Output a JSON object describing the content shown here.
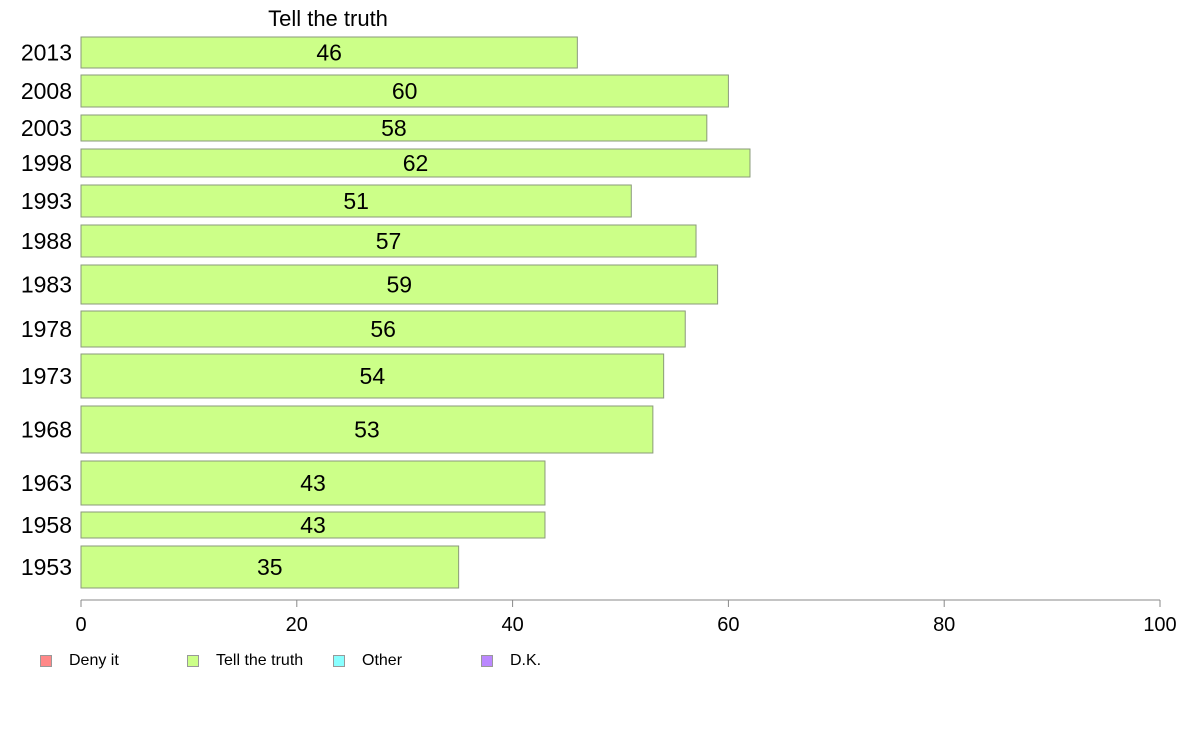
{
  "chart_data": {
    "type": "bar",
    "orientation": "horizontal",
    "title": "Tell the truth",
    "categories": [
      "2013",
      "2008",
      "2003",
      "1998",
      "1993",
      "1988",
      "1983",
      "1978",
      "1973",
      "1968",
      "1963",
      "1958",
      "1953"
    ],
    "series": [
      {
        "name": "Tell the truth",
        "values": [
          46,
          60,
          58,
          62,
          51,
          57,
          59,
          56,
          54,
          53,
          43,
          43,
          35
        ],
        "display_values": [
          46,
          60,
          58,
          62,
          51,
          57,
          59,
          56,
          54,
          53,
          43,
          43,
          35
        ],
        "color": "#ccff88"
      }
    ],
    "xlim": [
      0,
      100
    ],
    "xticks": [
      "0",
      "20",
      "40",
      "60",
      "80",
      "100"
    ],
    "grid": false,
    "legend_position": "bottom",
    "legend": [
      {
        "label": "Deny it",
        "color": "#ff8888"
      },
      {
        "label": "Tell the truth",
        "color": "#ccff88"
      },
      {
        "label": "Other",
        "color": "#88ffff"
      },
      {
        "label": "D.K.",
        "color": "#bb88ff"
      }
    ]
  }
}
